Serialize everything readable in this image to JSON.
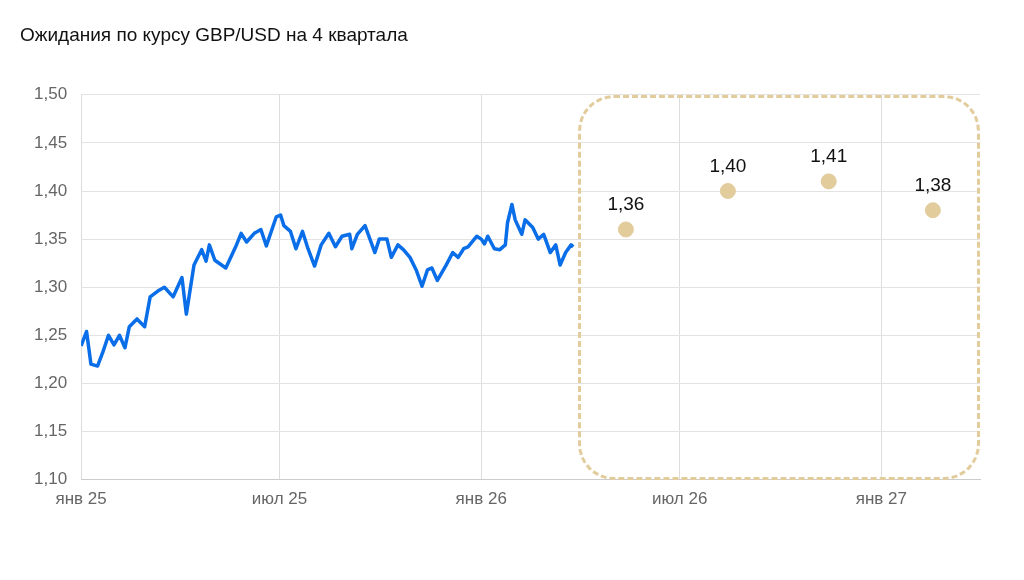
{
  "chart_data": {
    "type": "line",
    "title": "Ожидания по курсу GBP/USD на 4 квартала",
    "xlim": [
      "2025-01-01",
      "2027-04-01"
    ],
    "xticks": [
      {
        "value": "2025-01-01",
        "label": "янв 25"
      },
      {
        "value": "2025-07-01",
        "label": "июл 25"
      },
      {
        "value": "2026-01-01",
        "label": "янв 26"
      },
      {
        "value": "2026-07-01",
        "label": "июл 26"
      },
      {
        "value": "2027-01-01",
        "label": "янв 27"
      }
    ],
    "ylim": [
      1.1,
      1.5
    ],
    "yticks": [
      {
        "value": 1.1,
        "label": "1,10"
      },
      {
        "value": 1.15,
        "label": "1,15"
      },
      {
        "value": 1.2,
        "label": "1,20"
      },
      {
        "value": 1.25,
        "label": "1,25"
      },
      {
        "value": 1.3,
        "label": "1,30"
      },
      {
        "value": 1.35,
        "label": "1,35"
      },
      {
        "value": 1.4,
        "label": "1,40"
      },
      {
        "value": 1.45,
        "label": "1,45"
      },
      {
        "value": 1.5,
        "label": "1,50"
      }
    ],
    "grid": true,
    "legend": false,
    "series": [
      {
        "type": "line",
        "color": "#0a6ee8",
        "marker": "none",
        "x": [
          "2025-01-01",
          "2025-01-06",
          "2025-01-10",
          "2025-01-16",
          "2025-01-21",
          "2025-01-26",
          "2025-01-31",
          "2025-02-05",
          "2025-02-10",
          "2025-02-14",
          "2025-02-21",
          "2025-02-28",
          "2025-03-05",
          "2025-03-12",
          "2025-03-18",
          "2025-03-26",
          "2025-04-03",
          "2025-04-07",
          "2025-04-14",
          "2025-04-21",
          "2025-04-25",
          "2025-04-28",
          "2025-05-03",
          "2025-05-13",
          "2025-05-22",
          "2025-05-27",
          "2025-06-01",
          "2025-06-08",
          "2025-06-14",
          "2025-06-19",
          "2025-06-28",
          "2025-07-02",
          "2025-07-05",
          "2025-07-11",
          "2025-07-16",
          "2025-07-22",
          "2025-07-27",
          "2025-08-02",
          "2025-08-08",
          "2025-08-15",
          "2025-08-21",
          "2025-08-27",
          "2025-09-03",
          "2025-09-05",
          "2025-09-10",
          "2025-09-17",
          "2025-09-26",
          "2025-09-30",
          "2025-10-07",
          "2025-10-11",
          "2025-10-17",
          "2025-10-22",
          "2025-10-28",
          "2025-11-03",
          "2025-11-08",
          "2025-11-13",
          "2025-11-17",
          "2025-11-22",
          "2025-11-30",
          "2025-12-06",
          "2025-12-11",
          "2025-12-16",
          "2025-12-20",
          "2025-12-28",
          "2026-01-01",
          "2026-01-04",
          "2026-01-07",
          "2026-01-13",
          "2026-01-18",
          "2026-01-23",
          "2026-01-25",
          "2026-01-29",
          "2026-02-01",
          "2026-02-07",
          "2026-02-10",
          "2026-02-17",
          "2026-02-22",
          "2026-02-27",
          "2026-03-05",
          "2026-03-10",
          "2026-03-14",
          "2026-03-19",
          "2026-03-24",
          "2026-03-26"
        ],
        "values": [
          1.239,
          1.254,
          1.22,
          1.218,
          1.233,
          1.25,
          1.24,
          1.25,
          1.237,
          1.259,
          1.267,
          1.259,
          1.29,
          1.296,
          1.3,
          1.29,
          1.31,
          1.272,
          1.323,
          1.339,
          1.327,
          1.344,
          1.328,
          1.32,
          1.342,
          1.356,
          1.347,
          1.356,
          1.36,
          1.343,
          1.373,
          1.375,
          1.364,
          1.358,
          1.34,
          1.358,
          1.34,
          1.322,
          1.344,
          1.356,
          1.342,
          1.353,
          1.355,
          1.34,
          1.355,
          1.364,
          1.336,
          1.35,
          1.35,
          1.331,
          1.344,
          1.339,
          1.331,
          1.317,
          1.301,
          1.318,
          1.32,
          1.307,
          1.323,
          1.336,
          1.331,
          1.34,
          1.342,
          1.353,
          1.35,
          1.345,
          1.353,
          1.34,
          1.339,
          1.344,
          1.367,
          1.386,
          1.37,
          1.355,
          1.37,
          1.362,
          1.35,
          1.355,
          1.336,
          1.344,
          1.323,
          1.336,
          1.344,
          1.342
        ]
      },
      {
        "type": "scatter",
        "color": "#e2cc9c",
        "marker": "circle",
        "x": [
          "2026-05-13",
          "2026-08-14",
          "2026-11-14",
          "2027-02-17"
        ],
        "values": [
          1.36,
          1.4,
          1.41,
          1.38
        ],
        "value_labels": [
          "1,36",
          "1,40",
          "1,41",
          "1,38"
        ]
      }
    ]
  }
}
